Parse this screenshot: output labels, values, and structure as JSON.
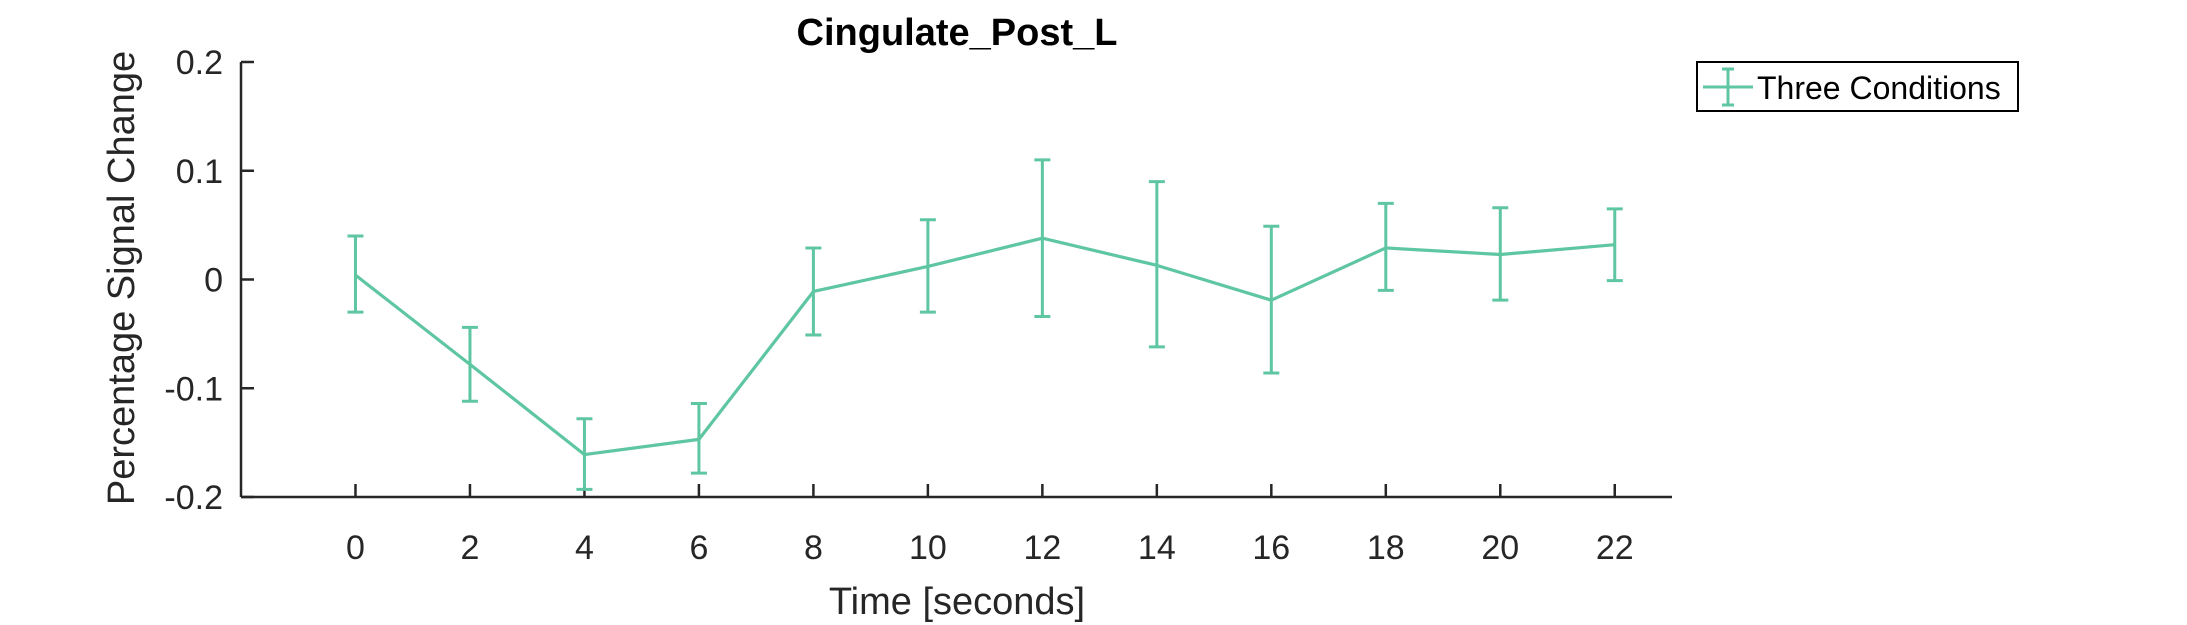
{
  "chart_data": {
    "type": "line",
    "title": "Cingulate_Post_L",
    "xlabel": "Time [seconds]",
    "ylabel": "Percentage Signal Change",
    "xlim": [
      -2,
      23
    ],
    "ylim": [
      -0.2,
      0.2
    ],
    "xticks": [
      0,
      2,
      4,
      6,
      8,
      10,
      12,
      14,
      16,
      18,
      20,
      22
    ],
    "yticks": [
      -0.2,
      -0.1,
      0,
      0.1,
      0.2
    ],
    "ytick_labels": [
      "-0.2",
      "-0.1",
      "0",
      "0.1",
      "0.2"
    ],
    "grid": false,
    "legend_position": "outside-top-right",
    "series": [
      {
        "name": "Three Conditions",
        "color": "#5fc6a2",
        "x": [
          0,
          2,
          4,
          6,
          8,
          10,
          12,
          14,
          16,
          18,
          20,
          22
        ],
        "y": [
          0.004,
          -0.078,
          -0.161,
          -0.147,
          -0.011,
          0.012,
          0.038,
          0.013,
          -0.019,
          0.029,
          0.023,
          0.032
        ],
        "err_upper": [
          0.04,
          -0.044,
          -0.128,
          -0.114,
          0.029,
          0.055,
          0.11,
          0.09,
          0.049,
          0.07,
          0.066,
          0.065
        ],
        "err_lower": [
          -0.03,
          -0.112,
          -0.193,
          -0.178,
          -0.051,
          -0.03,
          -0.034,
          -0.062,
          -0.086,
          -0.01,
          -0.019,
          -0.001
        ]
      }
    ]
  }
}
